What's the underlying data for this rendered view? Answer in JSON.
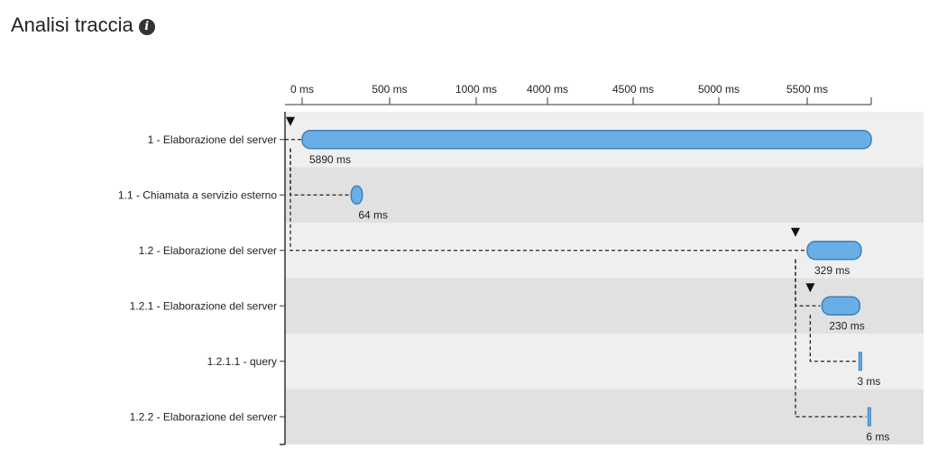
{
  "page": {
    "title": "Analisi traccia",
    "info_icon": "info-icon",
    "info_glyph": "i"
  },
  "chart_data": {
    "type": "gantt",
    "axis_ticks": [
      "0 ms",
      "500 ms",
      "1000 ms",
      "4000 ms",
      "4500 ms",
      "5000 ms",
      "5500 ms"
    ],
    "axis_ticks_ms": [
      0,
      500,
      1000,
      4000,
      4500,
      5000,
      5500
    ],
    "axis_max_ms": 5890,
    "axis_break": "between 1000 ms and 4000 ms",
    "rows": [
      {
        "label": "1 - Elaborazione del server",
        "start_ms": 0,
        "duration_ms": 5890,
        "duration_label": "5890 ms",
        "parent": null,
        "expanded": true
      },
      {
        "label": "1.1 - Chiamata a servizio esterno",
        "start_ms": 280,
        "duration_ms": 64,
        "duration_label": "64 ms",
        "parent": 0,
        "expanded": false
      },
      {
        "label": "1.2 - Elaborazione del server",
        "start_ms": 5500,
        "duration_ms": 329,
        "duration_label": "329 ms",
        "parent": 0,
        "expanded": true
      },
      {
        "label": "1.2.1 - Elaborazione del server",
        "start_ms": 5590,
        "duration_ms": 230,
        "duration_label": "230 ms",
        "parent": 2,
        "expanded": true
      },
      {
        "label": "1.2.1.1 - query",
        "start_ms": 5815,
        "duration_ms": 3,
        "duration_label": "3 ms",
        "parent": 3,
        "expanded": false
      },
      {
        "label": "1.2.2 - Elaborazione del server",
        "start_ms": 5870,
        "duration_ms": 6,
        "duration_label": "6 ms",
        "parent": 2,
        "expanded": false
      }
    ],
    "colors": {
      "bar_fill": "#6aaee6",
      "bar_stroke": "#3d7fba",
      "row_light": "#efefef",
      "row_dark": "#e1e1e1",
      "connector": "#222222"
    }
  }
}
